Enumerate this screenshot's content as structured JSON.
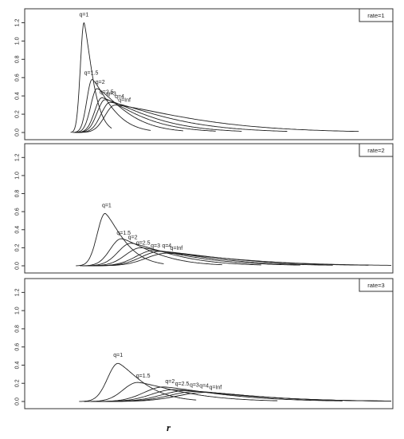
{
  "chart_data": [
    {
      "type": "line",
      "legend": "rate=1",
      "legend_position": "top-right",
      "ylim": [
        0,
        1.3
      ],
      "yticks": [
        "0.0",
        "0.2",
        "0.4",
        "0.6",
        "0.8",
        "1.0",
        "1.2"
      ],
      "xlim": [
        0,
        10
      ],
      "series": [
        {
          "name": "q=1",
          "peak_x": 0.55,
          "peak_y": 1.2,
          "end_x": 1.4
        },
        {
          "name": "q=1.5",
          "peak_x": 0.8,
          "peak_y": 0.58,
          "end_x": 2.6
        },
        {
          "name": "q=2",
          "peak_x": 0.95,
          "peak_y": 0.48,
          "end_x": 3.6
        },
        {
          "name": "q=2.5",
          "peak_x": 1.1,
          "peak_y": 0.38,
          "end_x": 4.6
        },
        {
          "name": "q=3",
          "peak_x": 1.2,
          "peak_y": 0.36,
          "end_x": 5.4
        },
        {
          "name": "q=4",
          "peak_x": 1.35,
          "peak_y": 0.33,
          "end_x": 6.8
        },
        {
          "name": "q=Inf",
          "peak_x": 1.5,
          "peak_y": 0.3,
          "end_x": 9.0
        }
      ]
    },
    {
      "type": "line",
      "legend": "rate=2",
      "legend_position": "top-right",
      "ylim": [
        0,
        1.3
      ],
      "yticks": [
        "0.0",
        "0.2",
        "0.4",
        "0.6",
        "0.8",
        "1.0",
        "1.2"
      ],
      "xlim": [
        0,
        10
      ],
      "series": [
        {
          "name": "q=1",
          "peak_x": 1.2,
          "peak_y": 0.58,
          "end_x": 3.0
        },
        {
          "name": "q=1.5",
          "peak_x": 1.7,
          "peak_y": 0.3,
          "end_x": 4.8
        },
        {
          "name": "q=2",
          "peak_x": 2.0,
          "peak_y": 0.25,
          "end_x": 6.0
        },
        {
          "name": "q=2.5",
          "peak_x": 2.3,
          "peak_y": 0.2,
          "end_x": 7.2
        },
        {
          "name": "q=3",
          "peak_x": 2.7,
          "peak_y": 0.17,
          "end_x": 8.2
        },
        {
          "name": "q=4",
          "peak_x": 2.9,
          "peak_y": 0.16,
          "end_x": 9.3
        },
        {
          "name": "q=Inf",
          "peak_x": 3.1,
          "peak_y": 0.14,
          "end_x": 10.0
        }
      ]
    },
    {
      "type": "line",
      "legend": "rate=3",
      "legend_position": "top-right",
      "ylim": [
        0,
        1.3
      ],
      "yticks": [
        "0.0",
        "0.2",
        "0.4",
        "0.6",
        "0.8",
        "1.0",
        "1.2"
      ],
      "xlim": [
        0,
        10
      ],
      "series": [
        {
          "name": "q=1",
          "peak_x": 1.6,
          "peak_y": 0.42,
          "end_x": 4.0
        },
        {
          "name": "q=1.5",
          "peak_x": 2.2,
          "peak_y": 0.21,
          "end_x": 6.5
        },
        {
          "name": "q=2",
          "peak_x": 3.0,
          "peak_y": 0.16,
          "end_x": 8.5
        },
        {
          "name": "q=2.5",
          "peak_x": 3.3,
          "peak_y": 0.13,
          "end_x": 10.0
        },
        {
          "name": "q=3",
          "peak_x": 3.7,
          "peak_y": 0.12,
          "end_x": 10.0
        },
        {
          "name": "q=4",
          "peak_x": 4.0,
          "peak_y": 0.11,
          "end_x": 10.0
        },
        {
          "name": "q=Inf",
          "peak_x": 4.3,
          "peak_y": 0.1,
          "end_x": 10.0
        }
      ]
    }
  ],
  "figure": {
    "xlabel": "r"
  }
}
